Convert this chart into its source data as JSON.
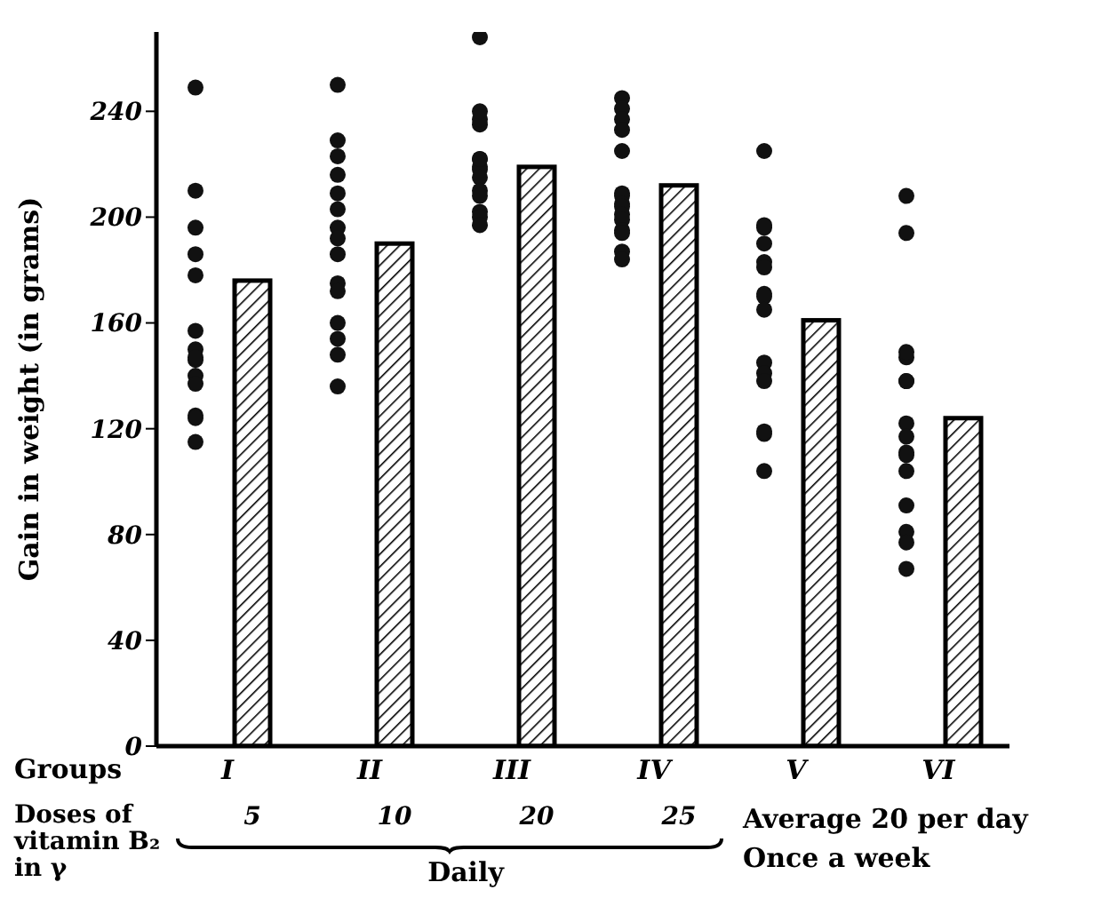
{
  "chart_data": {
    "type": "bar",
    "xlabel": "Groups",
    "ylabel": "Gain in weight (in grams)",
    "categories": [
      "I",
      "II",
      "III",
      "IV",
      "V",
      "VI"
    ],
    "ylim": [
      0,
      270
    ],
    "yticks": [
      0,
      40,
      80,
      120,
      160,
      200,
      240
    ],
    "marker": "circle",
    "series": [
      {
        "color": "#000000",
        "values": [
          176,
          190,
          219,
          212,
          161,
          124
        ]
      },
      {
        "type": "scatter",
        "color": "#111111",
        "x": [
          "I",
          "I",
          "I",
          "I",
          "I",
          "I",
          "I",
          "I",
          "I",
          "I",
          "I",
          "I",
          "I",
          "I",
          "II",
          "II",
          "II",
          "II",
          "II",
          "II",
          "II",
          "II",
          "II",
          "II",
          "II",
          "II",
          "II",
          "II",
          "II",
          "III",
          "III",
          "III",
          "III",
          "III",
          "III",
          "III",
          "III",
          "III",
          "III",
          "III",
          "III",
          "III",
          "III",
          "IV",
          "IV",
          "IV",
          "IV",
          "IV",
          "IV",
          "IV",
          "IV",
          "IV",
          "IV",
          "IV",
          "IV",
          "IV",
          "IV",
          "IV",
          "V",
          "V",
          "V",
          "V",
          "V",
          "V",
          "V",
          "V",
          "V",
          "V",
          "V",
          "V",
          "V",
          "V",
          "V",
          "VI",
          "VI",
          "VI",
          "VI",
          "VI",
          "VI",
          "VI",
          "VI",
          "VI",
          "VI",
          "VI",
          "VI",
          "VI",
          "VI",
          "VI"
        ],
        "values": [
          249,
          210,
          196,
          186,
          178,
          157,
          150,
          146,
          147,
          140,
          137,
          125,
          124,
          115,
          250,
          223,
          229,
          216,
          209,
          203,
          196,
          192,
          186,
          175,
          172,
          160,
          154,
          148,
          136,
          268,
          235,
          237,
          240,
          218,
          219,
          222,
          222,
          215,
          210,
          208,
          202,
          200,
          197,
          245,
          241,
          237,
          233,
          225,
          209,
          208,
          205,
          204,
          201,
          199,
          195,
          194,
          187,
          184,
          225,
          196,
          197,
          190,
          183,
          181,
          171,
          170,
          165,
          145,
          141,
          138,
          118,
          119,
          104,
          208,
          194,
          147,
          149,
          138,
          138,
          122,
          117,
          111,
          110,
          104,
          91,
          81,
          77,
          67
        ]
      }
    ],
    "annotations": [
      "Doses of vitamin B₂ in γ",
      "Daily",
      "Average 20 per day",
      "Once a week",
      "5",
      "10",
      "20",
      "25"
    ]
  }
}
